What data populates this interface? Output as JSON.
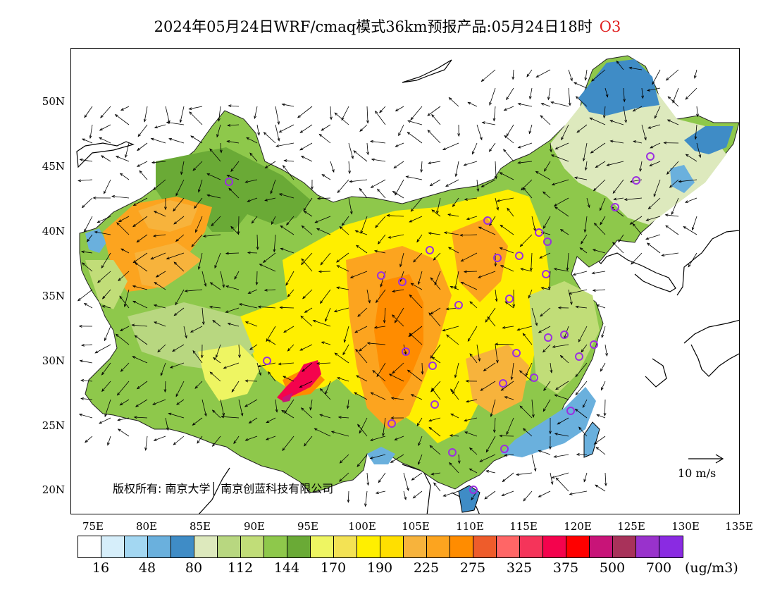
{
  "title": {
    "text": "2024年05月24日WRF/cmaq模式36km预报产品:05月24日18时",
    "species": "O3"
  },
  "map": {
    "lat_labels": [
      "50N",
      "45N",
      "40N",
      "35N",
      "30N",
      "25N",
      "20N"
    ],
    "lon_labels": [
      "75E",
      "80E",
      "85E",
      "90E",
      "95E",
      "100E",
      "105E",
      "110E",
      "115E",
      "120E",
      "125E",
      "130E",
      "135E"
    ],
    "copyright": "版权所有: 南京大学│ 南京创蓝科技有限公司",
    "wind_reference": "10 m/s"
  },
  "colorbar": {
    "colors": [
      "#ffffff",
      "#d6eefa",
      "#a3d7f2",
      "#6ab0dd",
      "#3f8cc6",
      "#dde9bd",
      "#b8d780",
      "#c1dd78",
      "#8ec84b",
      "#6aaa36",
      "#eef562",
      "#f3e254",
      "#ffef00",
      "#ffdf00",
      "#f7b33c",
      "#fca41f",
      "#ff8c00",
      "#ee5c2b",
      "#ff6666",
      "#f5345a",
      "#f4034d",
      "#ff0000",
      "#c81478",
      "#a8325a",
      "#9932cc",
      "#8a2be2"
    ],
    "labels": [
      "16",
      "48",
      "80",
      "112",
      "144",
      "170",
      "190",
      "225",
      "275",
      "325",
      "375",
      "500",
      "700"
    ],
    "units": "(ug/m3)"
  },
  "highlight_colors": {
    "station_marker": "#9b30e0",
    "title_species": "#e02020"
  }
}
